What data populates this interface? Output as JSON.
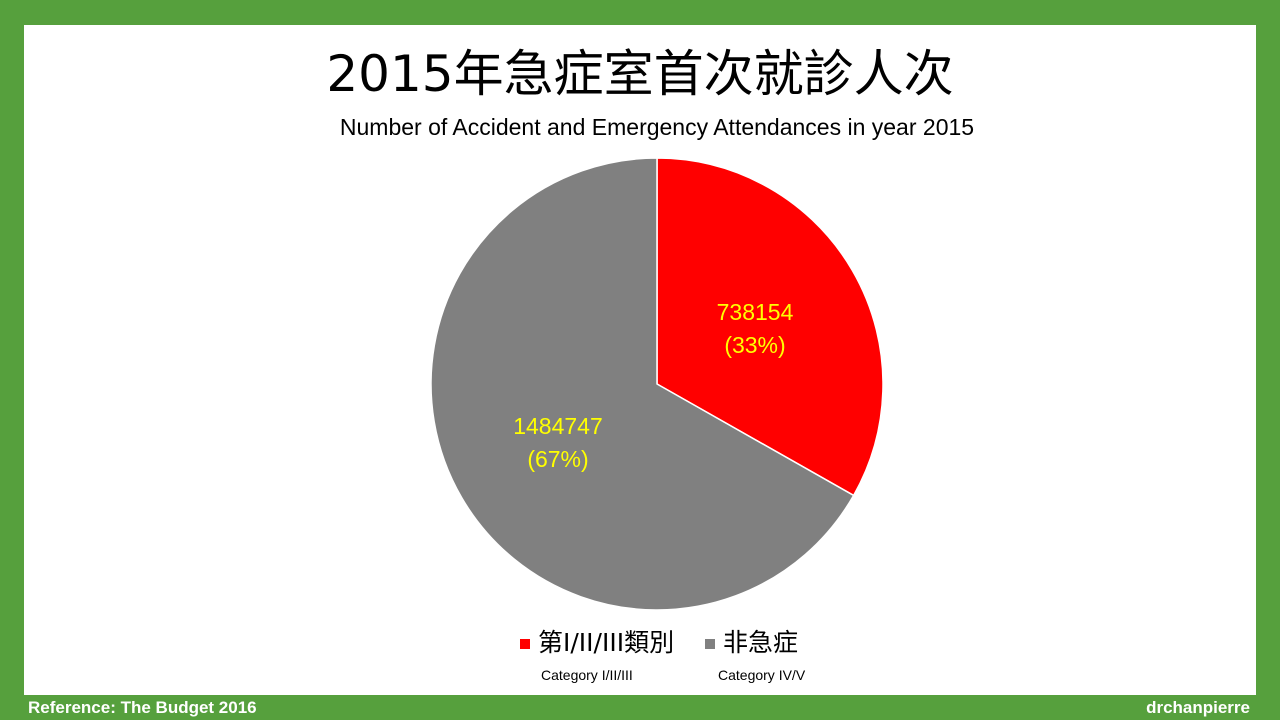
{
  "title": "2015年急症室首次就診人次",
  "subtitle": "Number of Accident and Emergency Attendances in year 2015",
  "chart_data": {
    "type": "pie",
    "slices": [
      {
        "label": "第I/II/III類別",
        "sublabel": "Category I/II/III",
        "value": 738154,
        "value_label": "738154",
        "percent_label": "(33%)",
        "color": "#ff0000"
      },
      {
        "label": "非急症",
        "sublabel": "Category IV/V",
        "value": 1484747,
        "value_label": "1484747",
        "percent_label": "(67%)",
        "color": "#808080"
      }
    ],
    "start": "12 o'clock",
    "direction": "clockwise",
    "data_label_color": "#ffff00",
    "legend_position": "bottom"
  },
  "footer": {
    "reference": "Reference: The Budget 2016",
    "author": "drchanpierre"
  },
  "colors": {
    "frame": "#56a03d",
    "background": "#ffffff"
  }
}
